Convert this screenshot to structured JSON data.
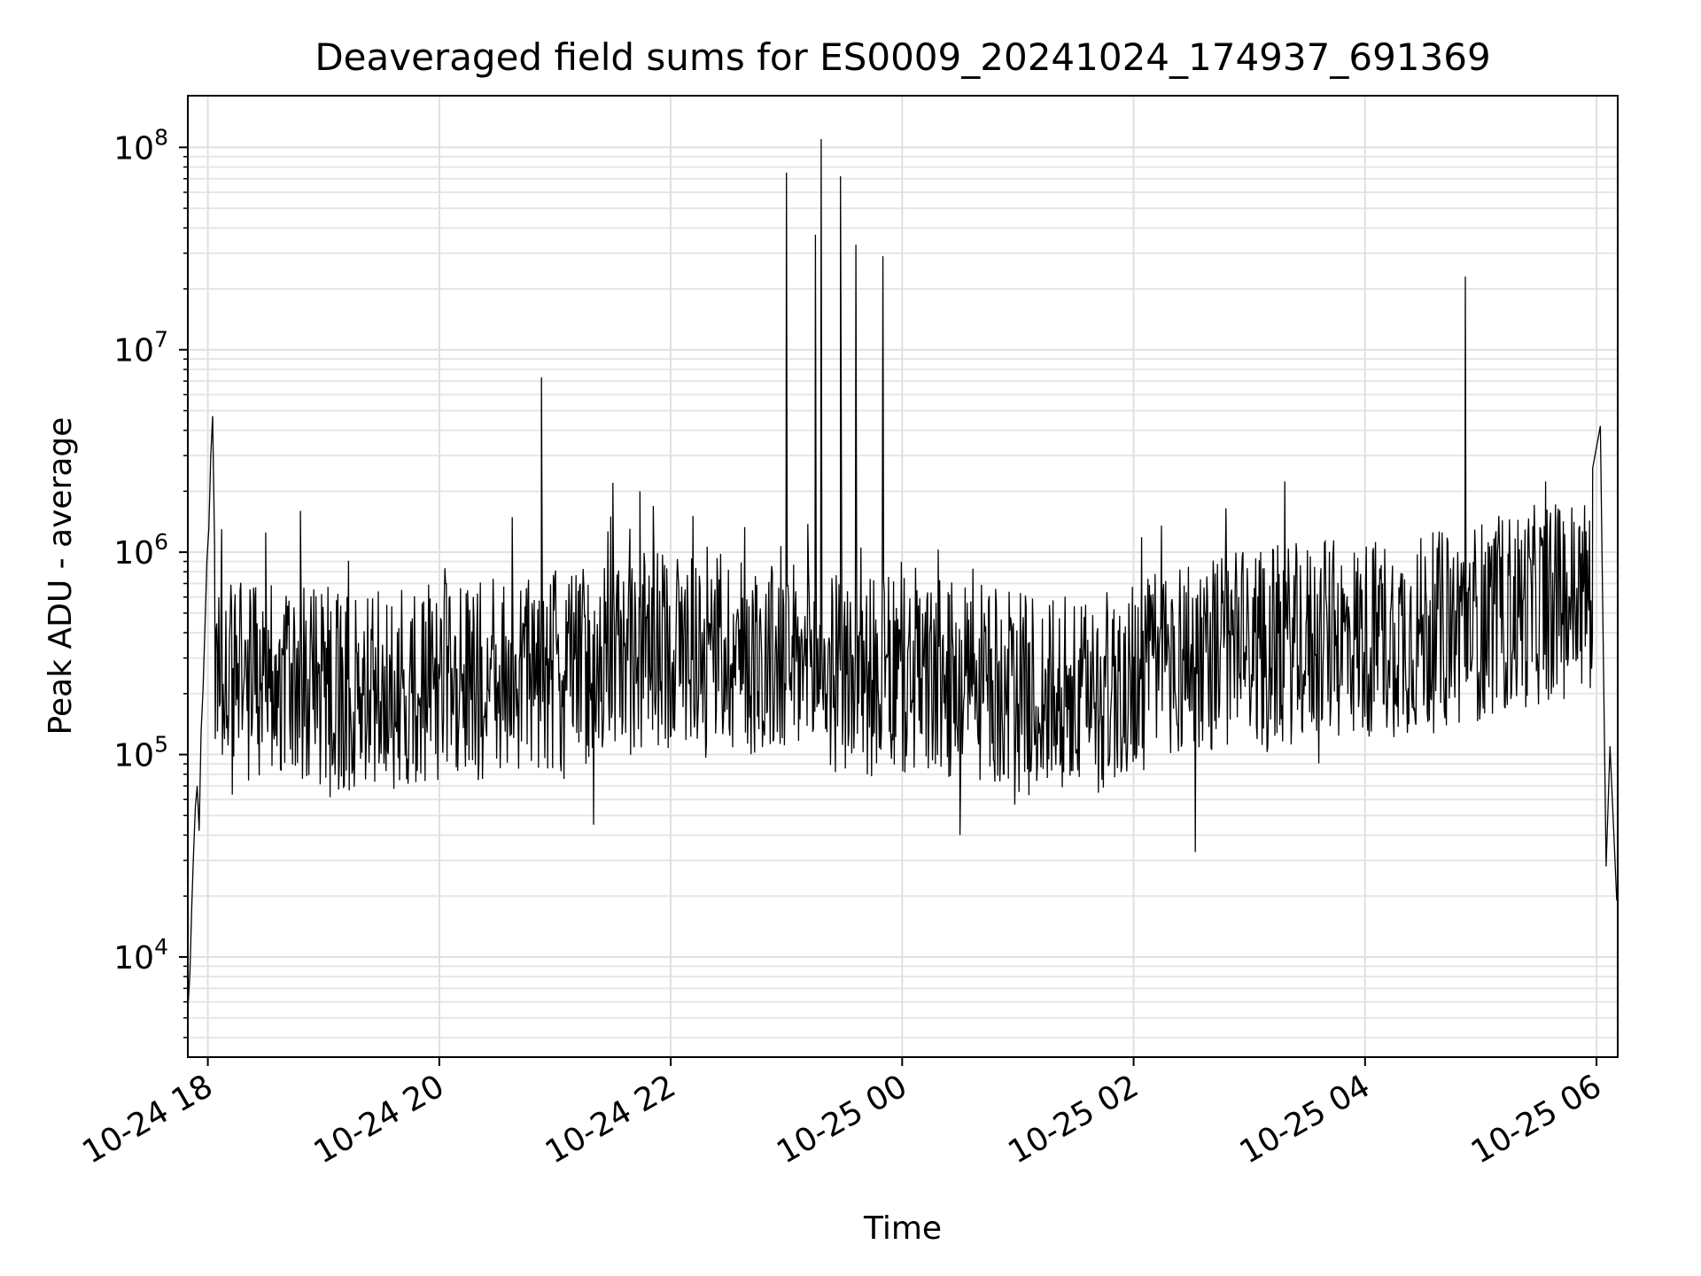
{
  "chart_data": {
    "type": "line",
    "title": "Deaveraged field sums for ES0009_20241024_174937_691369",
    "xlabel": "Time",
    "ylabel": "Peak ADU - average",
    "y_scale": "log",
    "ylim": [
      3200,
      180000000
    ],
    "xlim": [
      "2024-10-24 17:49:37",
      "2024-10-25 06:11:00"
    ],
    "grid": true,
    "legend": "none",
    "line_color": "#000000",
    "x_ticks": [
      {
        "value": "2024-10-24 18:00",
        "label": "10-24 18"
      },
      {
        "value": "2024-10-24 20:00",
        "label": "10-24 20"
      },
      {
        "value": "2024-10-24 22:00",
        "label": "10-24 22"
      },
      {
        "value": "2024-10-25 00:00",
        "label": "10-25 00"
      },
      {
        "value": "2024-10-25 02:00",
        "label": "10-25 02"
      },
      {
        "value": "2024-10-25 04:00",
        "label": "10-25 04"
      },
      {
        "value": "2024-10-25 06:00",
        "label": "10-25 06"
      }
    ],
    "y_ticks": [
      {
        "value": 10000,
        "base": "10",
        "exp": "4"
      },
      {
        "value": 100000,
        "base": "10",
        "exp": "5"
      },
      {
        "value": 1000000,
        "base": "10",
        "exp": "6"
      },
      {
        "value": 10000000,
        "base": "10",
        "exp": "7"
      },
      {
        "value": 100000000,
        "base": "10",
        "exp": "8"
      }
    ],
    "series": [
      {
        "values": [
          [
            "2024-10-24 17:49:37",
            5500
          ],
          [
            "2024-10-24 17:50:40",
            8200
          ],
          [
            "2024-10-24 17:51:40",
            18000
          ],
          [
            "2024-10-24 17:52:30",
            31000
          ],
          [
            "2024-10-24 17:53:30",
            55000
          ],
          [
            "2024-10-24 17:54:30",
            70000
          ],
          [
            "2024-10-24 17:55:30",
            42000
          ],
          [
            "2024-10-24 17:56:30",
            130000
          ],
          [
            "2024-10-24 17:57:30",
            210000
          ],
          [
            "2024-10-24 17:58:30",
            420000
          ],
          [
            "2024-10-24 17:59:30",
            900000
          ],
          [
            "2024-10-24 18:00:30",
            1300000
          ],
          [
            "2024-10-24 18:01:30",
            3000000
          ],
          [
            "2024-10-24 18:02:30",
            4700000
          ],
          [
            "2024-10-24 18:03:30",
            1100000
          ],
          [
            "2024-10-24 18:05:00",
            130000
          ],
          [
            "2024-10-24 18:30:00",
            1250000
          ],
          [
            "2024-10-24 18:48:00",
            1600000
          ],
          [
            "2024-10-24 20:53:00",
            7300000
          ],
          [
            "2024-10-24 21:20:00",
            45000
          ],
          [
            "2024-10-24 21:30:00",
            2200000
          ],
          [
            "2024-10-24 21:44:00",
            2000000
          ],
          [
            "2024-10-24 23:00:00",
            75000000
          ],
          [
            "2024-10-24 23:04:00",
            140000
          ],
          [
            "2024-10-24 23:15:00",
            37000000
          ],
          [
            "2024-10-24 23:18:00",
            110000000
          ],
          [
            "2024-10-24 23:21:00",
            160000
          ],
          [
            "2024-10-24 23:28:00",
            72000000
          ],
          [
            "2024-10-24 23:36:00",
            33000000
          ],
          [
            "2024-10-24 23:50:00",
            29000000
          ],
          [
            "2024-10-25 00:30:00",
            40000
          ],
          [
            "2024-10-25 02:32:00",
            33000
          ],
          [
            "2024-10-25 04:52:00",
            23000000
          ],
          [
            "2024-10-25 05:58:00",
            2600000
          ],
          [
            "2024-10-25 06:02:00",
            4200000
          ],
          [
            "2024-10-25 06:05:00",
            28000
          ],
          [
            "2024-10-25 06:07:00",
            110000
          ],
          [
            "2024-10-25 06:10:30",
            19000
          ]
        ]
      }
    ]
  }
}
